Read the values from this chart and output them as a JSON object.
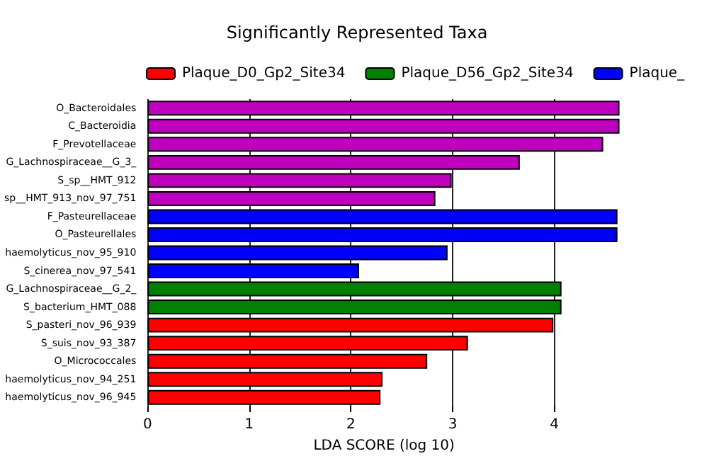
{
  "chart_data": {
    "type": "bar",
    "orientation": "horizontal",
    "stacked": true,
    "title": "Significantly Represented Taxa",
    "xlabel": "LDA SCORE (log 10)",
    "categories": [
      "O_Bacteroidales",
      "C_Bacteroidia",
      "F_Prevotellaceae",
      "G_Lachnospiraceae__G_3_",
      "S_sp__HMT_912",
      "sp__HMT_913_nov_97_751",
      "F_Pasteurellaceae",
      "O_Pasteurellales",
      "haemolyticus_nov_95_910",
      "S_cinerea_nov_97_541",
      "G_Lachnospiraceae__G_2_",
      "S_bacterium_HMT_088",
      "S_pasteri_nov_96_939",
      "S_suis_nov_93_387",
      "O_Micrococcales",
      "haemolyticus_nov_94_251",
      "haemolyticus_nov_96_945"
    ],
    "series": [
      {
        "name": "Plaque_D0_Gp2_Site34",
        "color": "#ff0000",
        "values": [
          null,
          null,
          null,
          null,
          null,
          null,
          null,
          null,
          null,
          null,
          null,
          null,
          3.99,
          3.15,
          2.75,
          2.31,
          2.29
        ]
      },
      {
        "name": "Plaque_D56_Gp2_Site34",
        "color": "#008000",
        "values": [
          null,
          null,
          null,
          null,
          null,
          null,
          null,
          null,
          null,
          null,
          4.07,
          4.07,
          null,
          null,
          null,
          null,
          null
        ]
      },
      {
        "name": "Plaque_",
        "color": "#0000ff",
        "values": [
          null,
          null,
          null,
          null,
          null,
          null,
          4.62,
          4.62,
          2.95,
          2.08,
          null,
          null,
          null,
          null,
          null,
          null,
          null
        ]
      },
      {
        "color": "#bf00bf",
        "values": [
          4.64,
          4.64,
          4.48,
          3.66,
          2.99,
          2.83,
          null,
          null,
          null,
          null,
          null,
          null,
          null,
          null,
          null,
          null,
          null
        ]
      }
    ],
    "xlim": [
      0,
      4.65
    ],
    "xticks": [
      0,
      1,
      2,
      3,
      4
    ],
    "grid": "x",
    "legend": "top"
  }
}
